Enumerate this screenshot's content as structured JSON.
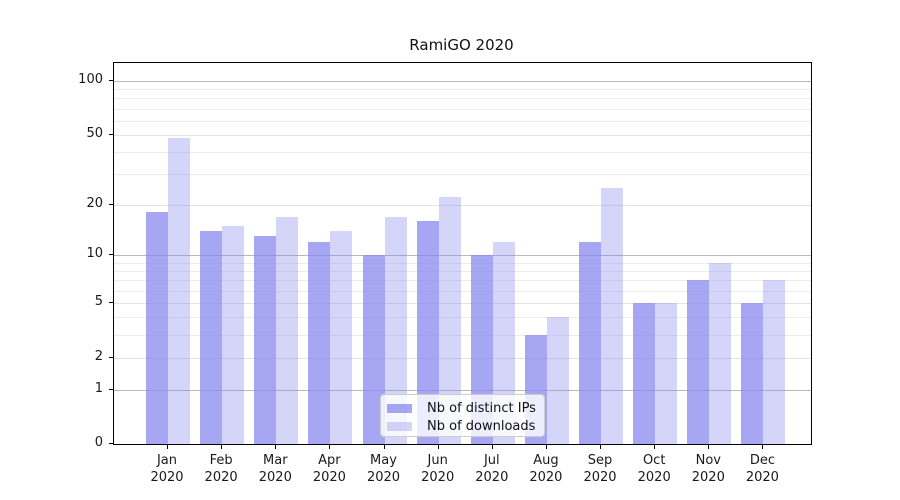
{
  "chart_data": {
    "type": "bar",
    "title": "RamiGO 2020",
    "categories": [
      "Jan",
      "Feb",
      "Mar",
      "Apr",
      "May",
      "Jun",
      "Jul",
      "Aug",
      "Sep",
      "Oct",
      "Nov",
      "Dec"
    ],
    "category_year": "2020",
    "series": [
      {
        "name": "Nb of distinct IPs",
        "values": [
          18,
          14,
          13,
          12,
          10,
          16,
          10,
          3,
          12,
          5,
          7,
          5
        ],
        "color": "#8888ee",
        "opacity": 0.75
      },
      {
        "name": "Nb of downloads",
        "values": [
          48,
          15,
          17,
          14,
          17,
          22,
          12,
          4,
          25,
          5,
          9,
          7
        ],
        "color": "#8888ee",
        "opacity": 0.35
      }
    ],
    "xlabel": "",
    "ylabel": "",
    "yaxis": {
      "scale": "log1p",
      "ylim": [
        0,
        126
      ],
      "tick_values": [
        0,
        1,
        2,
        5,
        10,
        20,
        50,
        100
      ],
      "tick_labels": [
        "0",
        "1",
        "2",
        "5",
        "10",
        "20",
        "50",
        "100"
      ],
      "major_gridlines": [
        1,
        10,
        100
      ],
      "mid_gridlines": [
        2,
        5,
        20,
        50
      ],
      "minor_gridlines": [
        3,
        4,
        6,
        7,
        8,
        9,
        30,
        40,
        60,
        70,
        80,
        90
      ]
    },
    "grid": true,
    "legend_position": "lower center",
    "colors": {
      "grid_major": "#b9b9b9",
      "grid_mid": "#e2e2e2",
      "grid_minor": "#ececec",
      "spine": "#000000",
      "text": "#1a1a1a"
    }
  }
}
